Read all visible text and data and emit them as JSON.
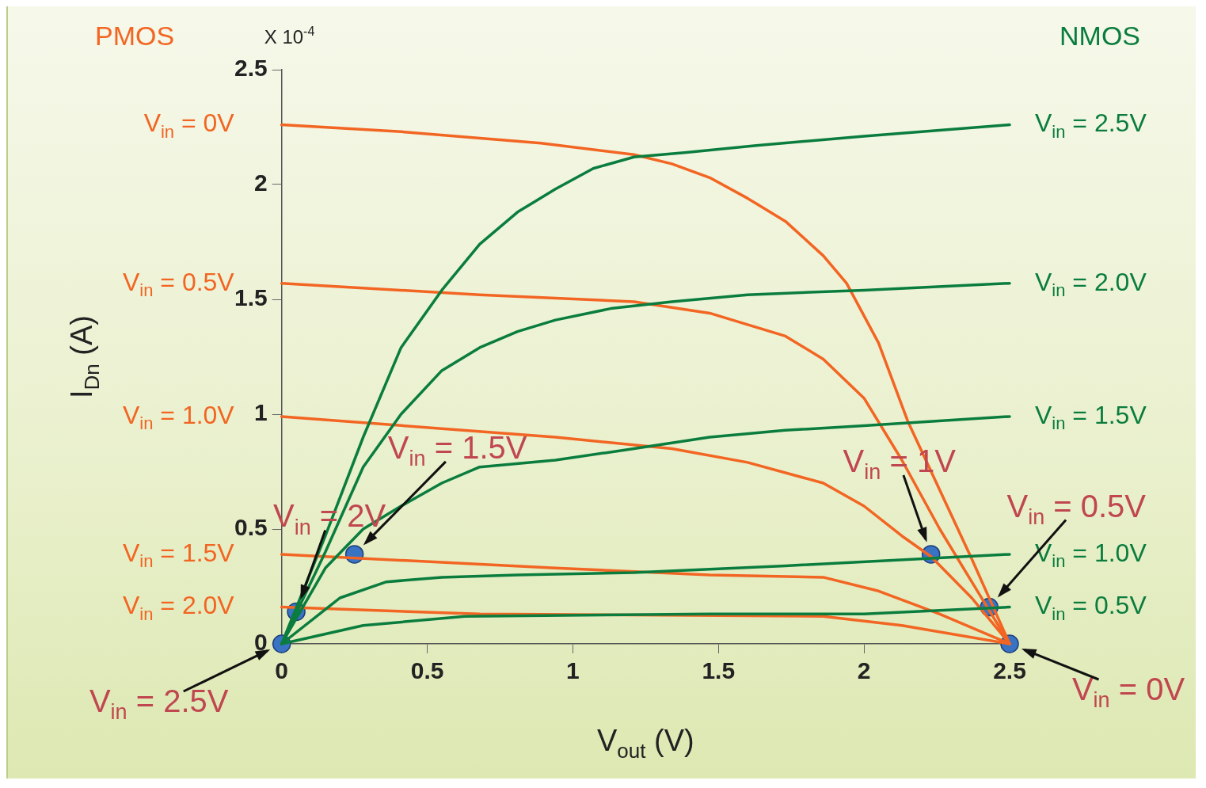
{
  "chart_data": {
    "type": "line",
    "xlabel": "V$_{out}$ (V)",
    "ylabel": "I$_{Dn}$ (A)",
    "xlim": [
      0,
      2.5
    ],
    "xticks": [
      0,
      0.5,
      1,
      1.5,
      2,
      2.5
    ],
    "ylim": [
      0,
      2.5
    ],
    "yticks": [
      0,
      0.5,
      1,
      1.5,
      2,
      2.5
    ],
    "grid": false,
    "legend": false,
    "marker": "none",
    "line_style": "solid",
    "series": [
      {
        "name": "V$_{in}$ = 2.5V",
        "color": "#0a7d3e",
        "x": [
          0,
          0.15,
          0.28,
          0.41,
          0.55,
          0.68,
          0.81,
          0.94,
          1.07,
          1.21,
          1.39,
          1.63,
          2.0,
          2.5
        ],
        "values": [
          0,
          0.47,
          0.9,
          1.29,
          1.54,
          1.74,
          1.88,
          1.98,
          2.07,
          2.12,
          2.14,
          2.17,
          2.21,
          2.26
        ]
      },
      {
        "name": "V$_{in}$ = 2.0V",
        "color": "#0a7d3e",
        "x": [
          0,
          0.15,
          0.28,
          0.41,
          0.55,
          0.68,
          0.81,
          0.94,
          1.13,
          1.34,
          1.6,
          2.0,
          2.5
        ],
        "values": [
          0,
          0.4,
          0.77,
          1.0,
          1.19,
          1.29,
          1.36,
          1.41,
          1.46,
          1.49,
          1.52,
          1.54,
          1.57
        ]
      },
      {
        "name": "V$_{in}$ = 1.5V",
        "color": "#0a7d3e",
        "x": [
          0,
          0.15,
          0.28,
          0.41,
          0.55,
          0.68,
          0.94,
          1.21,
          1.47,
          1.73,
          2.0,
          2.5
        ],
        "values": [
          0,
          0.33,
          0.5,
          0.6,
          0.7,
          0.77,
          0.8,
          0.85,
          0.9,
          0.93,
          0.95,
          0.99
        ]
      },
      {
        "name": "V$_{in}$ = 1.0V",
        "color": "#0a7d3e",
        "x": [
          0,
          0.2,
          0.36,
          0.55,
          0.81,
          1.21,
          1.73,
          2.5
        ],
        "values": [
          0,
          0.2,
          0.27,
          0.29,
          0.3,
          0.31,
          0.34,
          0.39
        ]
      },
      {
        "name": "V$_{in}$ = 0.5V",
        "color": "#0a7d3e",
        "x": [
          0,
          0.28,
          0.63,
          1.47,
          2.0,
          2.5
        ],
        "values": [
          0,
          0.08,
          0.12,
          0.13,
          0.13,
          0.16
        ]
      },
      {
        "name": "V$_{in}$ = 0V",
        "color": "#f26522",
        "x": [
          0,
          0.41,
          0.89,
          1.21,
          1.34,
          1.47,
          1.6,
          1.73,
          1.86,
          1.94,
          2.05,
          2.15,
          2.26,
          2.37,
          2.5
        ],
        "values": [
          2.26,
          2.23,
          2.18,
          2.13,
          2.09,
          2.03,
          1.94,
          1.84,
          1.69,
          1.57,
          1.31,
          0.97,
          0.67,
          0.37,
          0
        ]
      },
      {
        "name": "V$_{in}$ = 0.5V",
        "color": "#f26522",
        "x": [
          0,
          0.68,
          1.21,
          1.47,
          1.73,
          1.86,
          2.0,
          2.13,
          2.26,
          2.37,
          2.5
        ],
        "values": [
          1.57,
          1.52,
          1.49,
          1.44,
          1.34,
          1.24,
          1.07,
          0.8,
          0.5,
          0.27,
          0
        ]
      },
      {
        "name": "V$_{in}$ = 1.0V",
        "color": "#f26522",
        "x": [
          0,
          0.94,
          1.34,
          1.6,
          1.86,
          2.0,
          2.13,
          2.23,
          2.37,
          2.5
        ],
        "values": [
          0.99,
          0.9,
          0.85,
          0.79,
          0.7,
          0.6,
          0.47,
          0.38,
          0.2,
          0
        ]
      },
      {
        "name": "V$_{in}$ = 1.5V",
        "color": "#f26522",
        "x": [
          0,
          0.94,
          1.47,
          1.86,
          2.05,
          2.26,
          2.5
        ],
        "values": [
          0.39,
          0.33,
          0.3,
          0.29,
          0.23,
          0.13,
          0
        ]
      },
      {
        "name": "V$_{in}$ = 2.0V",
        "color": "#f26522",
        "x": [
          0,
          0.68,
          1.86,
          2.13,
          2.5
        ],
        "values": [
          0.16,
          0.13,
          0.12,
          0.08,
          0
        ]
      },
      {
        "type": "scatter",
        "marker": "circle",
        "color": "#3b73c4",
        "x": [
          0,
          0.05,
          0.25,
          2.23,
          2.43,
          2.5
        ],
        "values": [
          0,
          0.14,
          0.39,
          0.39,
          0.16,
          0
        ]
      }
    ],
    "annotations": [
      "X 10$^{-4}$",
      "PMOS",
      "NMOS",
      {
        "text": "V$_{in}$ = 2.5V",
        "x": 0,
        "y": 0
      },
      {
        "text": "V$_{in}$ = 2V",
        "x": 0.05,
        "y": 0.14
      },
      {
        "text": "V$_{in}$ = 1.5V",
        "x": 0.25,
        "y": 0.39
      },
      {
        "text": "V$_{in}$ = 1V",
        "x": 2.23,
        "y": 0.39
      },
      {
        "text": "V$_{in}$ = 0.5V",
        "x": 2.43,
        "y": 0.16
      },
      {
        "text": "V$_{in}$ = 0V",
        "x": 2.5,
        "y": 0
      }
    ]
  }
}
